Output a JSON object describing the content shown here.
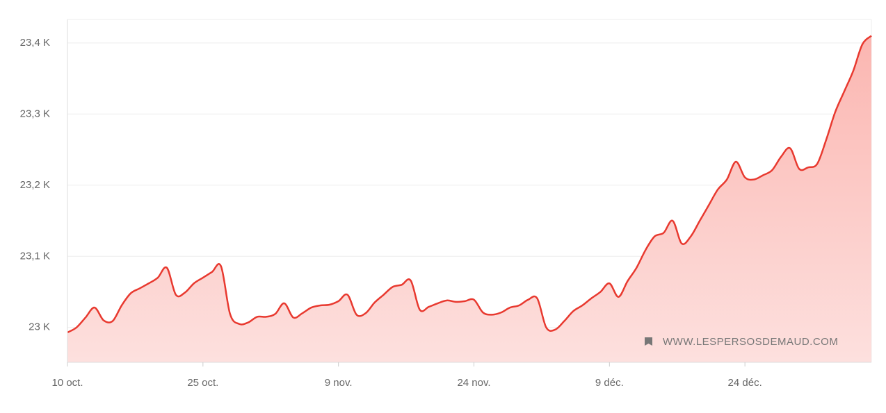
{
  "chart_data": {
    "type": "area",
    "categories": [
      "10 oct.",
      null,
      null,
      null,
      null,
      null,
      null,
      null,
      null,
      null,
      null,
      null,
      null,
      null,
      null,
      "25 oct.",
      null,
      null,
      null,
      null,
      null,
      null,
      null,
      null,
      null,
      null,
      null,
      null,
      null,
      null,
      "9 nov.",
      null,
      null,
      null,
      null,
      null,
      null,
      null,
      null,
      null,
      null,
      null,
      null,
      null,
      null,
      "24 nov.",
      null,
      null,
      null,
      null,
      null,
      null,
      null,
      null,
      null,
      null,
      null,
      null,
      null,
      null,
      "9 déc.",
      null,
      null,
      null,
      null,
      null,
      null,
      null,
      null,
      null,
      null,
      null,
      null,
      null,
      null,
      "24 déc.",
      null,
      null,
      null,
      null,
      null,
      null,
      null,
      null,
      null,
      null,
      null,
      null,
      null,
      null
    ],
    "values": [
      22993,
      23000,
      23014,
      23028,
      23010,
      23009,
      23031,
      23048,
      23055,
      23062,
      23070,
      23084,
      23046,
      23049,
      23062,
      23070,
      23078,
      23086,
      23019,
      23005,
      23007,
      23015,
      23015,
      23019,
      23034,
      23014,
      23020,
      23028,
      23031,
      23032,
      23037,
      23046,
      23018,
      23020,
      23035,
      23046,
      23057,
      23060,
      23066,
      23025,
      23029,
      23034,
      23038,
      23036,
      23037,
      23039,
      23021,
      23018,
      23021,
      23028,
      23031,
      23039,
      23041,
      23000,
      22997,
      23009,
      23023,
      23031,
      23041,
      23050,
      23062,
      23043,
      23065,
      23084,
      23109,
      23128,
      23133,
      23150,
      23118,
      23128,
      23150,
      23172,
      23194,
      23208,
      23233,
      23211,
      23208,
      23214,
      23221,
      23240,
      23252,
      23223,
      23225,
      23230,
      23264,
      23303,
      23332,
      23361,
      23398,
      23410
    ],
    "color": "#e8392f",
    "ylim": [
      22951,
      23433
    ],
    "yticks": [
      {
        "value": 23000,
        "label": "23 K"
      },
      {
        "value": 23100,
        "label": "23,1 K"
      },
      {
        "value": 23200,
        "label": "23,2 K"
      },
      {
        "value": 23300,
        "label": "23,3 K"
      },
      {
        "value": 23400,
        "label": "23,4 K"
      }
    ],
    "grid": true,
    "watermark": "WWW.LESPERSOSDEMAUD.COM"
  }
}
